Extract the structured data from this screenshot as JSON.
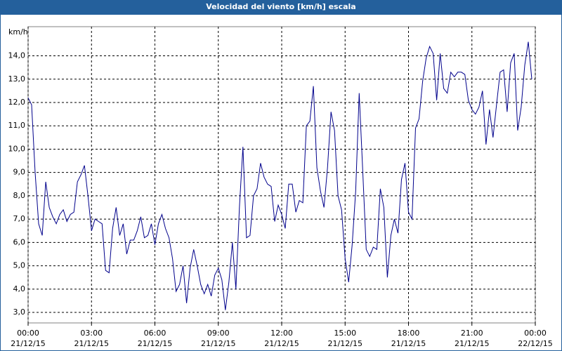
{
  "chart_data": {
    "type": "line",
    "title": "Velocidad del viento [km/h] escala",
    "y_label": "km/h",
    "x": [
      0,
      10,
      20,
      30,
      40,
      50,
      60,
      70,
      80,
      90,
      100,
      110,
      120,
      130,
      140,
      150,
      160,
      170,
      180,
      190,
      200,
      210,
      220,
      230,
      240,
      250,
      260,
      270,
      280,
      290,
      300,
      310,
      320,
      330,
      340,
      350,
      360,
      370,
      380,
      390,
      400,
      410,
      420,
      430,
      440,
      450,
      460,
      470,
      480,
      490,
      500,
      510,
      520,
      530,
      540,
      550,
      560,
      570,
      580,
      590,
      600,
      610,
      620,
      630,
      640,
      650,
      660,
      670,
      680,
      690,
      700,
      710,
      720,
      730,
      740,
      750,
      760,
      770,
      780,
      790,
      800,
      810,
      820,
      830,
      840,
      850,
      860,
      870,
      880,
      890,
      900,
      910,
      920,
      930,
      940,
      950,
      960,
      970,
      980,
      990,
      1000,
      1010,
      1020,
      1030,
      1040,
      1050,
      1060,
      1070,
      1080,
      1090,
      1100,
      1110,
      1120,
      1130,
      1140,
      1150,
      1160,
      1170,
      1180,
      1190,
      1200,
      1210,
      1220,
      1230,
      1240,
      1250,
      1260,
      1270,
      1280,
      1290,
      1300,
      1310,
      1320,
      1330,
      1340,
      1350,
      1360,
      1370,
      1380,
      1390,
      1400,
      1410,
      1420,
      1430
    ],
    "series": [
      {
        "name": "Velocidad del viento",
        "color": "#00008b",
        "values": [
          12.2,
          11.9,
          9.0,
          6.8,
          6.3,
          8.6,
          7.5,
          7.1,
          6.8,
          7.2,
          7.4,
          6.9,
          7.2,
          7.3,
          8.6,
          8.9,
          9.3,
          8.0,
          6.5,
          7.0,
          6.9,
          6.8,
          4.8,
          4.7,
          6.6,
          7.5,
          6.3,
          6.8,
          5.5,
          6.1,
          6.1,
          6.5,
          7.1,
          6.2,
          6.3,
          6.8,
          5.9,
          6.8,
          7.2,
          6.6,
          6.2,
          5.3,
          3.9,
          4.2,
          5.0,
          3.4,
          4.9,
          5.7,
          5.0,
          4.2,
          3.8,
          4.2,
          3.7,
          4.6,
          4.9,
          4.4,
          3.1,
          4.3,
          6.0,
          4.0,
          7.5,
          10.1,
          6.2,
          6.3,
          8.0,
          8.3,
          9.4,
          8.8,
          8.5,
          8.4,
          6.9,
          7.6,
          7.2,
          6.6,
          8.5,
          8.5,
          7.3,
          7.8,
          7.7,
          11.0,
          11.2,
          12.7,
          9.2,
          8.2,
          7.5,
          9.2,
          11.6,
          10.8,
          8.0,
          7.4,
          5.3,
          4.3,
          5.9,
          8.2,
          12.4,
          9.1,
          5.7,
          5.4,
          5.8,
          5.7,
          8.3,
          7.5,
          4.5,
          6.3,
          7.0,
          6.4,
          8.7,
          9.4,
          7.3,
          7.0,
          10.9,
          11.3,
          12.9,
          13.9,
          14.4,
          14.1,
          12.1,
          14.1,
          12.6,
          12.4,
          13.3,
          13.1,
          13.3,
          13.3,
          13.2,
          12.1,
          11.7,
          11.5,
          11.8,
          12.5,
          10.2,
          11.7,
          10.5,
          11.9,
          13.3,
          13.4,
          11.6,
          13.7,
          14.1,
          10.8,
          11.8,
          13.6,
          14.6,
          13.0
        ]
      }
    ],
    "xlim": [
      0,
      1440
    ],
    "xticks": [
      {
        "value": 0,
        "label": "00:00\n21/12/15"
      },
      {
        "value": 180,
        "label": "03:00\n21/12/15"
      },
      {
        "value": 360,
        "label": "06:00\n21/12/15"
      },
      {
        "value": 540,
        "label": "09:00\n21/12/15"
      },
      {
        "value": 720,
        "label": "12:00\n21/12/15"
      },
      {
        "value": 900,
        "label": "15:00\n21/12/15"
      },
      {
        "value": 1080,
        "label": "18:00\n21/12/15"
      },
      {
        "value": 1260,
        "label": "21:00\n21/12/15"
      },
      {
        "value": 1440,
        "label": "00:00\n22/12/15"
      }
    ],
    "ylim": [
      2.55,
      15.25
    ],
    "yticks": [
      {
        "value": 3,
        "label": "3,0"
      },
      {
        "value": 4,
        "label": "4,0"
      },
      {
        "value": 5,
        "label": "5,0"
      },
      {
        "value": 6,
        "label": "6,0"
      },
      {
        "value": 7,
        "label": "7,0"
      },
      {
        "value": 8,
        "label": "8,0"
      },
      {
        "value": 9,
        "label": "9,0"
      },
      {
        "value": 10,
        "label": "10,0"
      },
      {
        "value": 11,
        "label": "11,0"
      },
      {
        "value": 12,
        "label": "12,0"
      },
      {
        "value": 13,
        "label": "13,0"
      },
      {
        "value": 14,
        "label": "14,0"
      }
    ],
    "grid": true
  }
}
